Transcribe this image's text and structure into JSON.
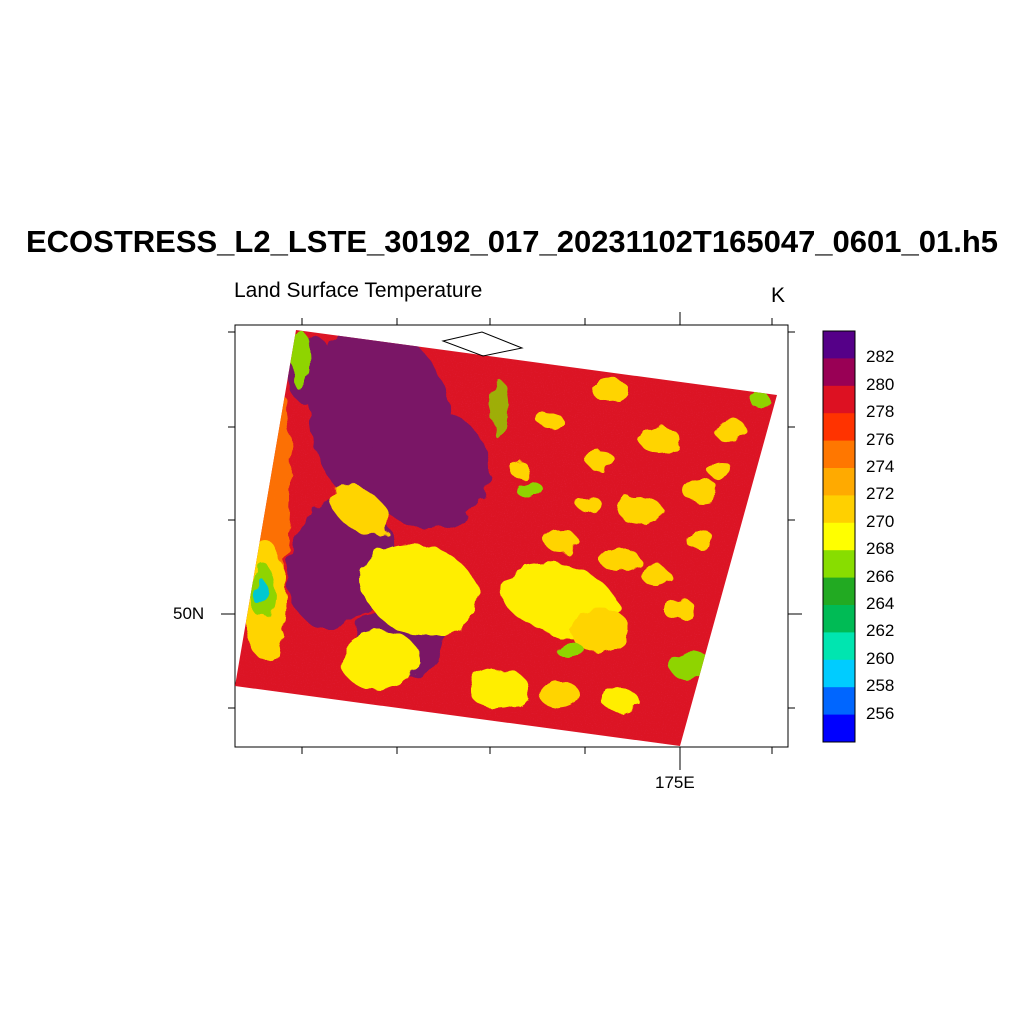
{
  "title": "ECOSTRESS_L2_LSTE_30192_017_20231102T165047_0601_01.h5",
  "subtitle": "Land Surface Temperature",
  "units": "K",
  "axes": {
    "lat_label": "50N",
    "lon_label": "175E"
  },
  "colorbar": {
    "colors": [
      "#0000ff",
      "#0066ff",
      "#00ccff",
      "#00e5b0",
      "#00bb55",
      "#22aa22",
      "#88dd00",
      "#ffff00",
      "#ffd000",
      "#ffaa00",
      "#ff7700",
      "#ff3300",
      "#dd1122",
      "#990055",
      "#550088"
    ],
    "labels": [
      "256",
      "258",
      "260",
      "262",
      "264",
      "266",
      "268",
      "270",
      "272",
      "274",
      "276",
      "278",
      "280",
      "282"
    ]
  },
  "palette": {
    "dark_purple": "#7a1466",
    "red": "#dc1424",
    "yellow": "#ffee00",
    "light_yellow": "#ffd400",
    "green": "#8fd400",
    "teal": "#00c8d0",
    "orange": "#ff7a00"
  }
}
